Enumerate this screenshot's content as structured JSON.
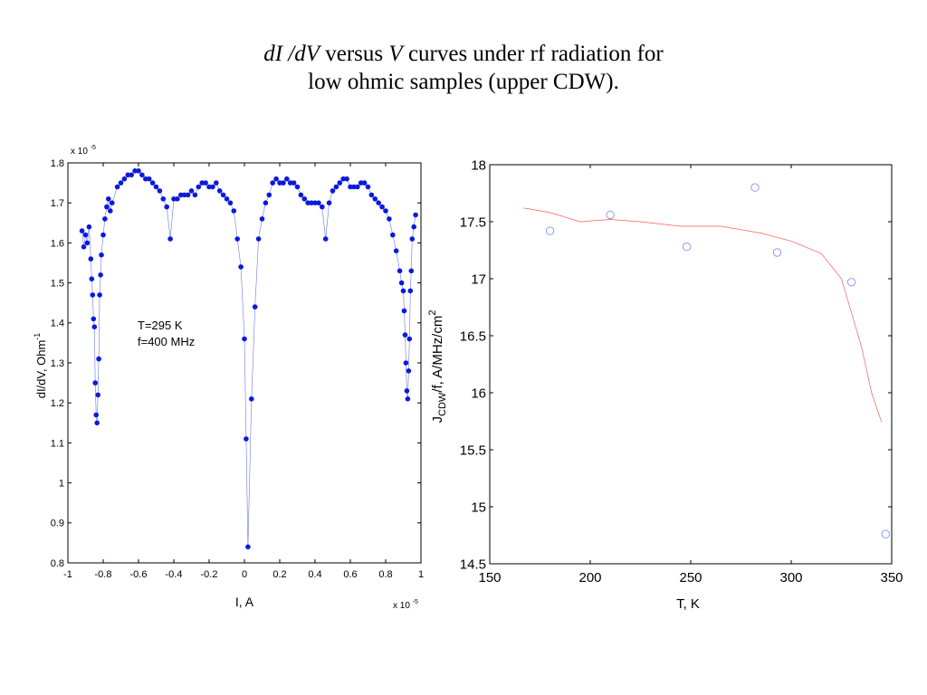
{
  "title": {
    "line1_a": "dI /dV",
    "line1_b": " versus ",
    "line1_c": "V",
    "line1_d": " curves under rf radiation for",
    "line2": "low ohmic samples (upper  CDW)."
  },
  "colors": {
    "left_series": "#0a1adc",
    "right_markers": "#8c9aff",
    "right_line": "#ff5a5a"
  },
  "chart_data": [
    {
      "type": "line",
      "xlabel": "I, A",
      "ylabel": "dI/dV, Ohm",
      "ylabel_sup": "-1",
      "x_multiplier_label": "x 10",
      "x_multiplier_exp": "-5",
      "y_multiplier_label": "x 10",
      "y_multiplier_exp": "-5",
      "annotation": [
        "T=295 K",
        "f=400 MHz"
      ],
      "xlim": [
        -1,
        1
      ],
      "ylim": [
        0.8,
        1.8
      ],
      "x_ticks": [
        -1,
        -0.8,
        -0.6,
        -0.4,
        -0.2,
        0,
        0.2,
        0.4,
        0.6,
        0.8,
        1
      ],
      "x_tick_labels": [
        "-1",
        "-0.8",
        "-0.6",
        "-0.4",
        "-0.2",
        "0",
        "0.2",
        "0.4",
        "0.6",
        "0.8",
        "1"
      ],
      "y_ticks": [
        0.8,
        0.9,
        1,
        1.1,
        1.2,
        1.3,
        1.4,
        1.5,
        1.6,
        1.7,
        1.8
      ],
      "y_tick_labels": [
        "0.8",
        "0.9",
        "1",
        "1.1",
        "1.2",
        "1.3",
        "1.4",
        "1.5",
        "1.6",
        "1.7",
        "1.8"
      ],
      "x": [
        -0.92,
        -0.91,
        -0.9,
        -0.89,
        -0.88,
        -0.87,
        -0.865,
        -0.86,
        -0.855,
        -0.85,
        -0.845,
        -0.84,
        -0.835,
        -0.83,
        -0.825,
        -0.82,
        -0.815,
        -0.81,
        -0.8,
        -0.79,
        -0.78,
        -0.77,
        -0.76,
        -0.75,
        -0.72,
        -0.7,
        -0.68,
        -0.66,
        -0.64,
        -0.62,
        -0.6,
        -0.58,
        -0.56,
        -0.54,
        -0.52,
        -0.5,
        -0.48,
        -0.46,
        -0.44,
        -0.42,
        -0.4,
        -0.38,
        -0.36,
        -0.34,
        -0.32,
        -0.3,
        -0.28,
        -0.26,
        -0.24,
        -0.22,
        -0.2,
        -0.18,
        -0.16,
        -0.14,
        -0.12,
        -0.1,
        -0.08,
        -0.06,
        -0.04,
        -0.02,
        0.0,
        0.01,
        0.02,
        0.04,
        0.06,
        0.08,
        0.1,
        0.12,
        0.14,
        0.16,
        0.18,
        0.2,
        0.22,
        0.24,
        0.26,
        0.28,
        0.3,
        0.32,
        0.34,
        0.36,
        0.38,
        0.4,
        0.42,
        0.44,
        0.46,
        0.48,
        0.5,
        0.52,
        0.54,
        0.56,
        0.58,
        0.6,
        0.62,
        0.64,
        0.66,
        0.68,
        0.7,
        0.72,
        0.74,
        0.76,
        0.78,
        0.8,
        0.82,
        0.84,
        0.86,
        0.88,
        0.89,
        0.9,
        0.905,
        0.91,
        0.915,
        0.92,
        0.925,
        0.93,
        0.935,
        0.94,
        0.945,
        0.95,
        0.96,
        0.97
      ],
      "y": [
        1.63,
        1.59,
        1.62,
        1.6,
        1.64,
        1.56,
        1.51,
        1.47,
        1.41,
        1.39,
        1.25,
        1.17,
        1.15,
        1.22,
        1.31,
        1.47,
        1.52,
        1.57,
        1.62,
        1.66,
        1.69,
        1.71,
        1.68,
        1.7,
        1.74,
        1.75,
        1.76,
        1.77,
        1.77,
        1.78,
        1.78,
        1.77,
        1.76,
        1.76,
        1.75,
        1.74,
        1.73,
        1.71,
        1.69,
        1.61,
        1.71,
        1.71,
        1.72,
        1.72,
        1.72,
        1.73,
        1.72,
        1.74,
        1.75,
        1.75,
        1.74,
        1.74,
        1.75,
        1.73,
        1.72,
        1.71,
        1.7,
        1.68,
        1.61,
        1.54,
        1.36,
        1.11,
        0.84,
        1.21,
        1.44,
        1.61,
        1.66,
        1.7,
        1.72,
        1.75,
        1.76,
        1.75,
        1.75,
        1.76,
        1.75,
        1.75,
        1.74,
        1.72,
        1.71,
        1.7,
        1.7,
        1.7,
        1.7,
        1.69,
        1.61,
        1.7,
        1.73,
        1.74,
        1.75,
        1.76,
        1.76,
        1.74,
        1.74,
        1.74,
        1.75,
        1.75,
        1.74,
        1.72,
        1.71,
        1.7,
        1.69,
        1.68,
        1.66,
        1.62,
        1.58,
        1.53,
        1.5,
        1.48,
        1.43,
        1.37,
        1.3,
        1.23,
        1.21,
        1.28,
        1.36,
        1.48,
        1.53,
        1.61,
        1.64,
        1.67
      ]
    },
    {
      "type": "scatter",
      "xlabel": "T, K",
      "ylabel_main": "J",
      "ylabel_sub": "CDW",
      "ylabel_rest": "/f, A/MHz/cm",
      "ylabel_sup": "2",
      "xlim": [
        150,
        350
      ],
      "ylim": [
        14.5,
        18
      ],
      "x_ticks": [
        150,
        200,
        250,
        300,
        350
      ],
      "x_tick_labels": [
        "150",
        "200",
        "250",
        "300",
        "350"
      ],
      "y_ticks": [
        14.5,
        15,
        15.5,
        16,
        16.5,
        17,
        17.5,
        18
      ],
      "y_tick_labels": [
        "14.5",
        "15",
        "15.5",
        "16",
        "16.5",
        "17",
        "17.5",
        "18"
      ],
      "points": {
        "x": [
          180,
          210,
          248,
          282,
          293,
          330,
          347
        ],
        "y": [
          17.42,
          17.56,
          17.28,
          17.8,
          17.23,
          16.97,
          14.76
        ]
      },
      "trend": {
        "x": [
          167,
          180,
          195,
          210,
          225,
          245,
          265,
          285,
          300,
          315,
          325,
          335,
          340,
          345
        ],
        "y": [
          17.62,
          17.58,
          17.5,
          17.52,
          17.5,
          17.46,
          17.46,
          17.4,
          17.33,
          17.22,
          17.0,
          16.4,
          16.0,
          15.74
        ]
      }
    }
  ]
}
